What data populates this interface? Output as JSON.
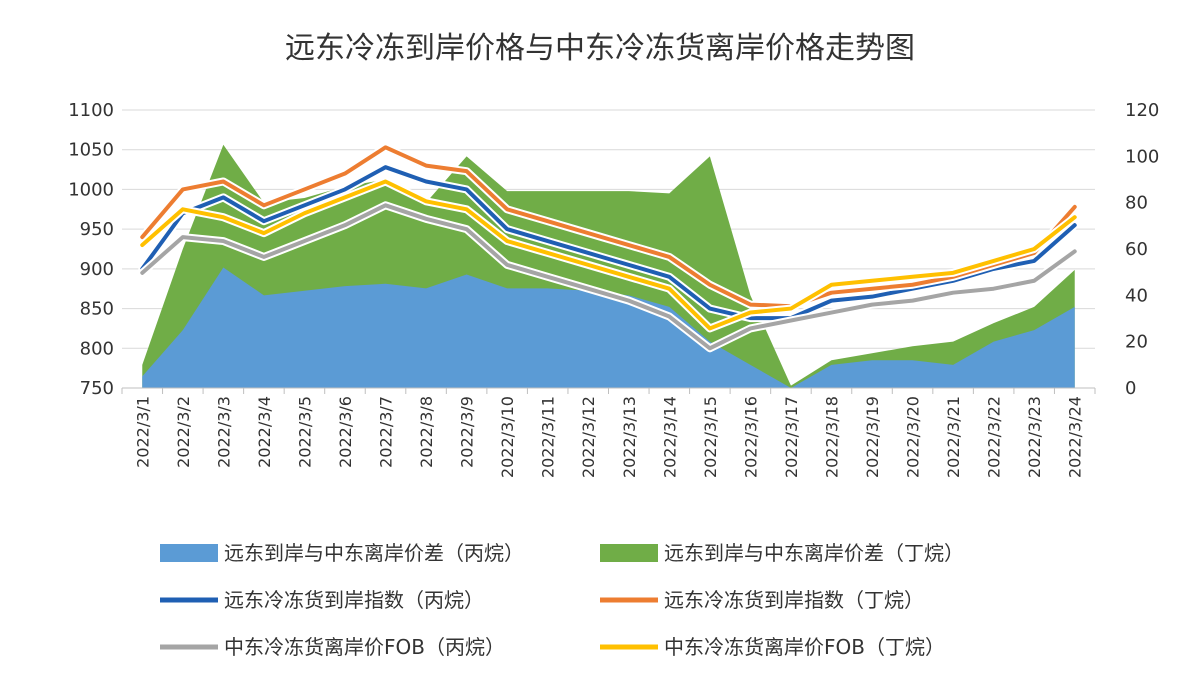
{
  "chart_data": {
    "type": "line",
    "title": "远东冷冻到岸价格与中东冷冻货离岸价格走势图",
    "x": [
      "2022/3/1",
      "2022/3/2",
      "2022/3/3",
      "2022/3/4",
      "2022/3/5",
      "2022/3/6",
      "2022/3/7",
      "2022/3/8",
      "2022/3/9",
      "2022/3/10",
      "2022/3/11",
      "2022/3/12",
      "2022/3/13",
      "2022/3/14",
      "2022/3/15",
      "2022/3/16",
      "2022/3/17",
      "2022/3/18",
      "2022/3/19",
      "2022/3/20",
      "2022/3/21",
      "2022/3/22",
      "2022/3/23",
      "2022/3/24"
    ],
    "y_left_ticks": [
      "750",
      "800",
      "850",
      "900",
      "950",
      "1000",
      "1050",
      "1100"
    ],
    "y_right_ticks": [
      "0",
      "20",
      "40",
      "60",
      "80",
      "100",
      "120"
    ],
    "ylim_left": [
      750,
      1100
    ],
    "ylim_right": [
      0,
      120
    ],
    "grid": true,
    "legend_position": "bottom",
    "series": [
      {
        "name": "远东到岸与中东离岸价差（丙烷）",
        "type": "area",
        "axis": "right",
        "color": "#5b9bd5",
        "values": [
          5,
          25,
          52,
          40,
          42,
          44,
          45,
          43,
          49,
          43,
          43,
          42,
          40,
          35,
          20,
          10,
          0,
          10,
          12,
          12,
          10,
          20,
          25,
          35
        ]
      },
      {
        "name": "远东到岸与中东离岸价差（丁烷）",
        "type": "area",
        "axis": "right",
        "color": "#70ad47",
        "values": [
          10,
          60,
          105,
          80,
          82,
          87,
          90,
          80,
          100,
          85,
          85,
          85,
          85,
          84,
          100,
          40,
          1,
          12,
          15,
          18,
          20,
          28,
          35,
          51
        ]
      },
      {
        "name": "远东冷冻货到岸指数（丙烷）",
        "type": "line",
        "axis": "left",
        "color": "#1f5fb3",
        "values": [
          900,
          970,
          990,
          960,
          980,
          1000,
          1028,
          1010,
          1000,
          950,
          935,
          920,
          905,
          890,
          850,
          838,
          838,
          860,
          865,
          875,
          885,
          900,
          910,
          955
        ]
      },
      {
        "name": "远东冷冻货到岸指数（丁烷）",
        "type": "line",
        "axis": "left",
        "color": "#ed7d31",
        "values": [
          940,
          1000,
          1010,
          980,
          1000,
          1020,
          1053,
          1030,
          1023,
          975,
          960,
          945,
          930,
          915,
          880,
          855,
          853,
          870,
          875,
          880,
          890,
          905,
          920,
          978
        ]
      },
      {
        "name": "中东冷冻货离岸价FOB（丙烷）",
        "type": "line",
        "axis": "left",
        "color": "#a5a5a5",
        "values": [
          895,
          940,
          935,
          915,
          935,
          955,
          980,
          963,
          950,
          905,
          890,
          875,
          860,
          840,
          800,
          825,
          835,
          845,
          855,
          860,
          870,
          875,
          885,
          922
        ]
      },
      {
        "name": "中东冷冻货离岸价FOB（丁烷）",
        "type": "line",
        "axis": "left",
        "color": "#ffc000",
        "values": [
          930,
          975,
          965,
          945,
          970,
          990,
          1010,
          985,
          975,
          935,
          920,
          905,
          890,
          875,
          825,
          845,
          850,
          880,
          885,
          890,
          895,
          910,
          925,
          965
        ]
      }
    ]
  }
}
